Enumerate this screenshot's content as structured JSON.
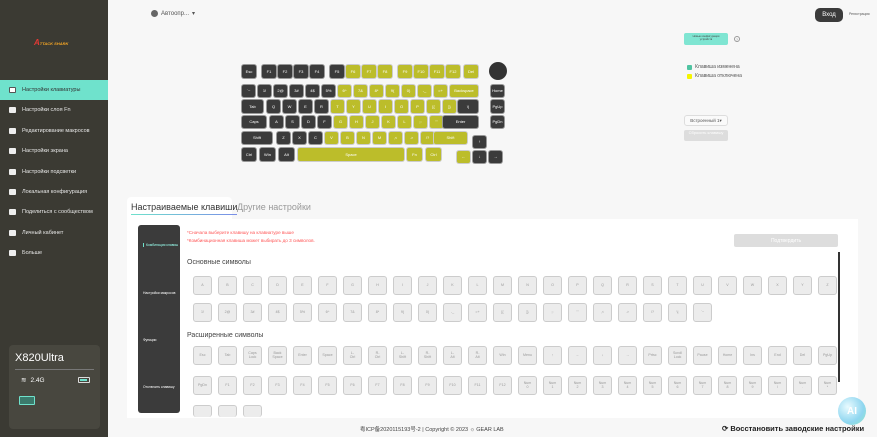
{
  "sidebar": {
    "logo": "ATTACK SHARK",
    "items": [
      {
        "label": "Настройки клавиатуры",
        "icon": "keyboard-icon",
        "active": true
      },
      {
        "label": "Настройки слоя Fn",
        "icon": "fn-layer-icon"
      },
      {
        "label": "Редактирование макросов",
        "icon": "macro-icon"
      },
      {
        "label": "Настройки экрана",
        "icon": "monitor-icon"
      },
      {
        "label": "Настройки подсветки",
        "icon": "lighting-icon"
      },
      {
        "label": "Локальная конфигурация",
        "icon": "archive-icon"
      },
      {
        "label": "Поделиться с сообществом",
        "icon": "share-icon"
      },
      {
        "label": "Личный кабинет",
        "icon": "user-icon"
      },
      {
        "label": "Больше",
        "icon": "more-icon"
      }
    ],
    "device": {
      "name": "X820Ultra",
      "connection": "2.4G",
      "battery_icon": "battery-icon",
      "keyboard_icon": "keyboard-icon"
    }
  },
  "header": {
    "language": "Автоопр...",
    "login": "Вход",
    "register": "Регистрация"
  },
  "right_panel": {
    "new_config": "Новые конфигурации устройств",
    "help": "?",
    "legend": [
      {
        "label": "Клавиша изменена",
        "color": "#4fc3a1"
      },
      {
        "label": "Клавиша отключена",
        "color": "#f5f500"
      }
    ],
    "profile": "Встроенный 1",
    "reset_key": "Сбросить клавишу"
  },
  "keyboard": {
    "colors": {
      "normal": "#3b3b3b",
      "disabled": "#bcbd2a"
    },
    "keys": [
      {
        "l": "Esc",
        "s": "normal"
      },
      {
        "l": "F1",
        "s": "normal"
      },
      {
        "l": "F2",
        "s": "normal"
      },
      {
        "l": "F3",
        "s": "normal"
      },
      {
        "l": "F4",
        "s": "normal"
      },
      {
        "l": "F5",
        "s": "normal"
      },
      {
        "l": "F6",
        "s": "disabled"
      },
      {
        "l": "F7",
        "s": "disabled"
      },
      {
        "l": "F8",
        "s": "disabled"
      },
      {
        "l": "F9",
        "s": "disabled"
      },
      {
        "l": "F10",
        "s": "disabled"
      },
      {
        "l": "F11",
        "s": "disabled"
      },
      {
        "l": "F12",
        "s": "disabled"
      },
      {
        "l": "Del",
        "s": "disabled"
      },
      {
        "l": "`~",
        "s": "normal"
      },
      {
        "l": "1!",
        "s": "normal"
      },
      {
        "l": "2@",
        "s": "normal"
      },
      {
        "l": "3#",
        "s": "normal"
      },
      {
        "l": "4$",
        "s": "normal"
      },
      {
        "l": "5%",
        "s": "normal"
      },
      {
        "l": "6^",
        "s": "disabled"
      },
      {
        "l": "7&",
        "s": "disabled"
      },
      {
        "l": "8*",
        "s": "disabled"
      },
      {
        "l": "9(",
        "s": "disabled"
      },
      {
        "l": "0)",
        "s": "disabled"
      },
      {
        "l": "-_",
        "s": "disabled"
      },
      {
        "l": "=+",
        "s": "disabled"
      },
      {
        "l": "Backspace",
        "s": "disabled"
      },
      {
        "l": "Home",
        "s": "normal"
      },
      {
        "l": "Tab",
        "s": "normal"
      },
      {
        "l": "Q",
        "s": "normal"
      },
      {
        "l": "W",
        "s": "normal"
      },
      {
        "l": "E",
        "s": "normal"
      },
      {
        "l": "R",
        "s": "normal"
      },
      {
        "l": "T",
        "s": "disabled"
      },
      {
        "l": "Y",
        "s": "disabled"
      },
      {
        "l": "U",
        "s": "disabled"
      },
      {
        "l": "I",
        "s": "disabled"
      },
      {
        "l": "O",
        "s": "disabled"
      },
      {
        "l": "P",
        "s": "disabled"
      },
      {
        "l": "[{",
        "s": "disabled"
      },
      {
        "l": "]}",
        "s": "disabled"
      },
      {
        "l": "\\|",
        "s": "normal"
      },
      {
        "l": "PgUp",
        "s": "normal"
      },
      {
        "l": "Caps",
        "s": "normal"
      },
      {
        "l": "A",
        "s": "normal"
      },
      {
        "l": "S",
        "s": "normal"
      },
      {
        "l": "D",
        "s": "normal"
      },
      {
        "l": "F",
        "s": "normal"
      },
      {
        "l": "G",
        "s": "disabled"
      },
      {
        "l": "H",
        "s": "disabled"
      },
      {
        "l": "J",
        "s": "disabled"
      },
      {
        "l": "K",
        "s": "disabled"
      },
      {
        "l": "L",
        "s": "disabled"
      },
      {
        "l": ";:",
        "s": "disabled"
      },
      {
        "l": "'\"",
        "s": "disabled"
      },
      {
        "l": "Enter",
        "s": "normal"
      },
      {
        "l": "PgDn",
        "s": "normal"
      },
      {
        "l": "Shift",
        "s": "normal"
      },
      {
        "l": "Z",
        "s": "normal"
      },
      {
        "l": "X",
        "s": "normal"
      },
      {
        "l": "C",
        "s": "normal"
      },
      {
        "l": "V",
        "s": "disabled"
      },
      {
        "l": "B",
        "s": "disabled"
      },
      {
        "l": "N",
        "s": "disabled"
      },
      {
        "l": "M",
        "s": "disabled"
      },
      {
        "l": ",<",
        "s": "disabled"
      },
      {
        "l": ".>",
        "s": "disabled"
      },
      {
        "l": "/?",
        "s": "disabled"
      },
      {
        "l": "Shift",
        "s": "disabled"
      },
      {
        "l": "↑",
        "s": "normal"
      },
      {
        "l": "Ctrl",
        "s": "normal"
      },
      {
        "l": "Win",
        "s": "normal"
      },
      {
        "l": "Alt",
        "s": "normal"
      },
      {
        "l": "Space",
        "s": "disabled"
      },
      {
        "l": "Fn",
        "s": "disabled"
      },
      {
        "l": "Ctrl",
        "s": "disabled"
      },
      {
        "l": "←",
        "s": "disabled"
      },
      {
        "l": "↓",
        "s": "normal"
      },
      {
        "l": "→",
        "s": "normal"
      }
    ]
  },
  "tabs": [
    {
      "label": "Настраиваемые клавиши",
      "active": true
    },
    {
      "label": "Другие настройки"
    }
  ],
  "sub_menu": [
    "Комбинация клавиш",
    "Настройки макросов",
    "Функции",
    "Отключить клавишу"
  ],
  "hints": [
    "*Сначала выберите клавишу на клавиатуре выше",
    "*Комбинационная клавиша может выбирать до 3 символов."
  ],
  "confirm": "Подтвердить",
  "basic": {
    "title": "Основные символы",
    "keys": [
      "A",
      "B",
      "C",
      "D",
      "E",
      "F",
      "G",
      "H",
      "I",
      "J",
      "K",
      "L",
      "M",
      "N",
      "O",
      "P",
      "Q",
      "R",
      "S",
      "T",
      "U",
      "V",
      "W",
      "X",
      "Y",
      "Z",
      "1!",
      "2@",
      "3#",
      "4$",
      "5%",
      "6^",
      "7&",
      "8*",
      "9(",
      "0)",
      "-_",
      "=+",
      "[{",
      "]}",
      ";:",
      "'\"",
      ",<",
      ".>",
      "/?",
      "\\|",
      "`~"
    ]
  },
  "extended": {
    "title": "Расширенные символы",
    "keys": [
      "Esc",
      "Tab",
      "Caps\nLock",
      "Back\nSpace",
      "Enter",
      "Space",
      "L-\nCtrl",
      "R-\nCtrl",
      "L-\nShift",
      "R-\nShift",
      "L-\nAlt",
      "R-\nAlt",
      "Win",
      "Menu",
      "↑",
      "←",
      "↓",
      "→",
      "Prtsc",
      "Scroll\nLock",
      "Pause",
      "Home",
      "Ins",
      "End",
      "Del",
      "PgUp",
      "PgDn",
      "F1",
      "F2",
      "F3",
      "F4",
      "F5",
      "F6",
      "F7",
      "F8",
      "F9",
      "F10",
      "F11",
      "F12",
      "Num\n0",
      "Num\n1",
      "Num\n2",
      "Num\n3",
      "Num\n4",
      "Num\n5",
      "Num\n6",
      "Num\n7",
      "Num\n8",
      "Num\n9",
      "Num\n/",
      "Num\n.",
      "Num\n*",
      "",
      "",
      ""
    ]
  },
  "footer": {
    "text": "粤ICP备2020115193号-2 | Copyright © 2023 ☼ GEAR LAB",
    "restore": "⟳ Восстановить заводские настройки",
    "ai": "AI"
  }
}
